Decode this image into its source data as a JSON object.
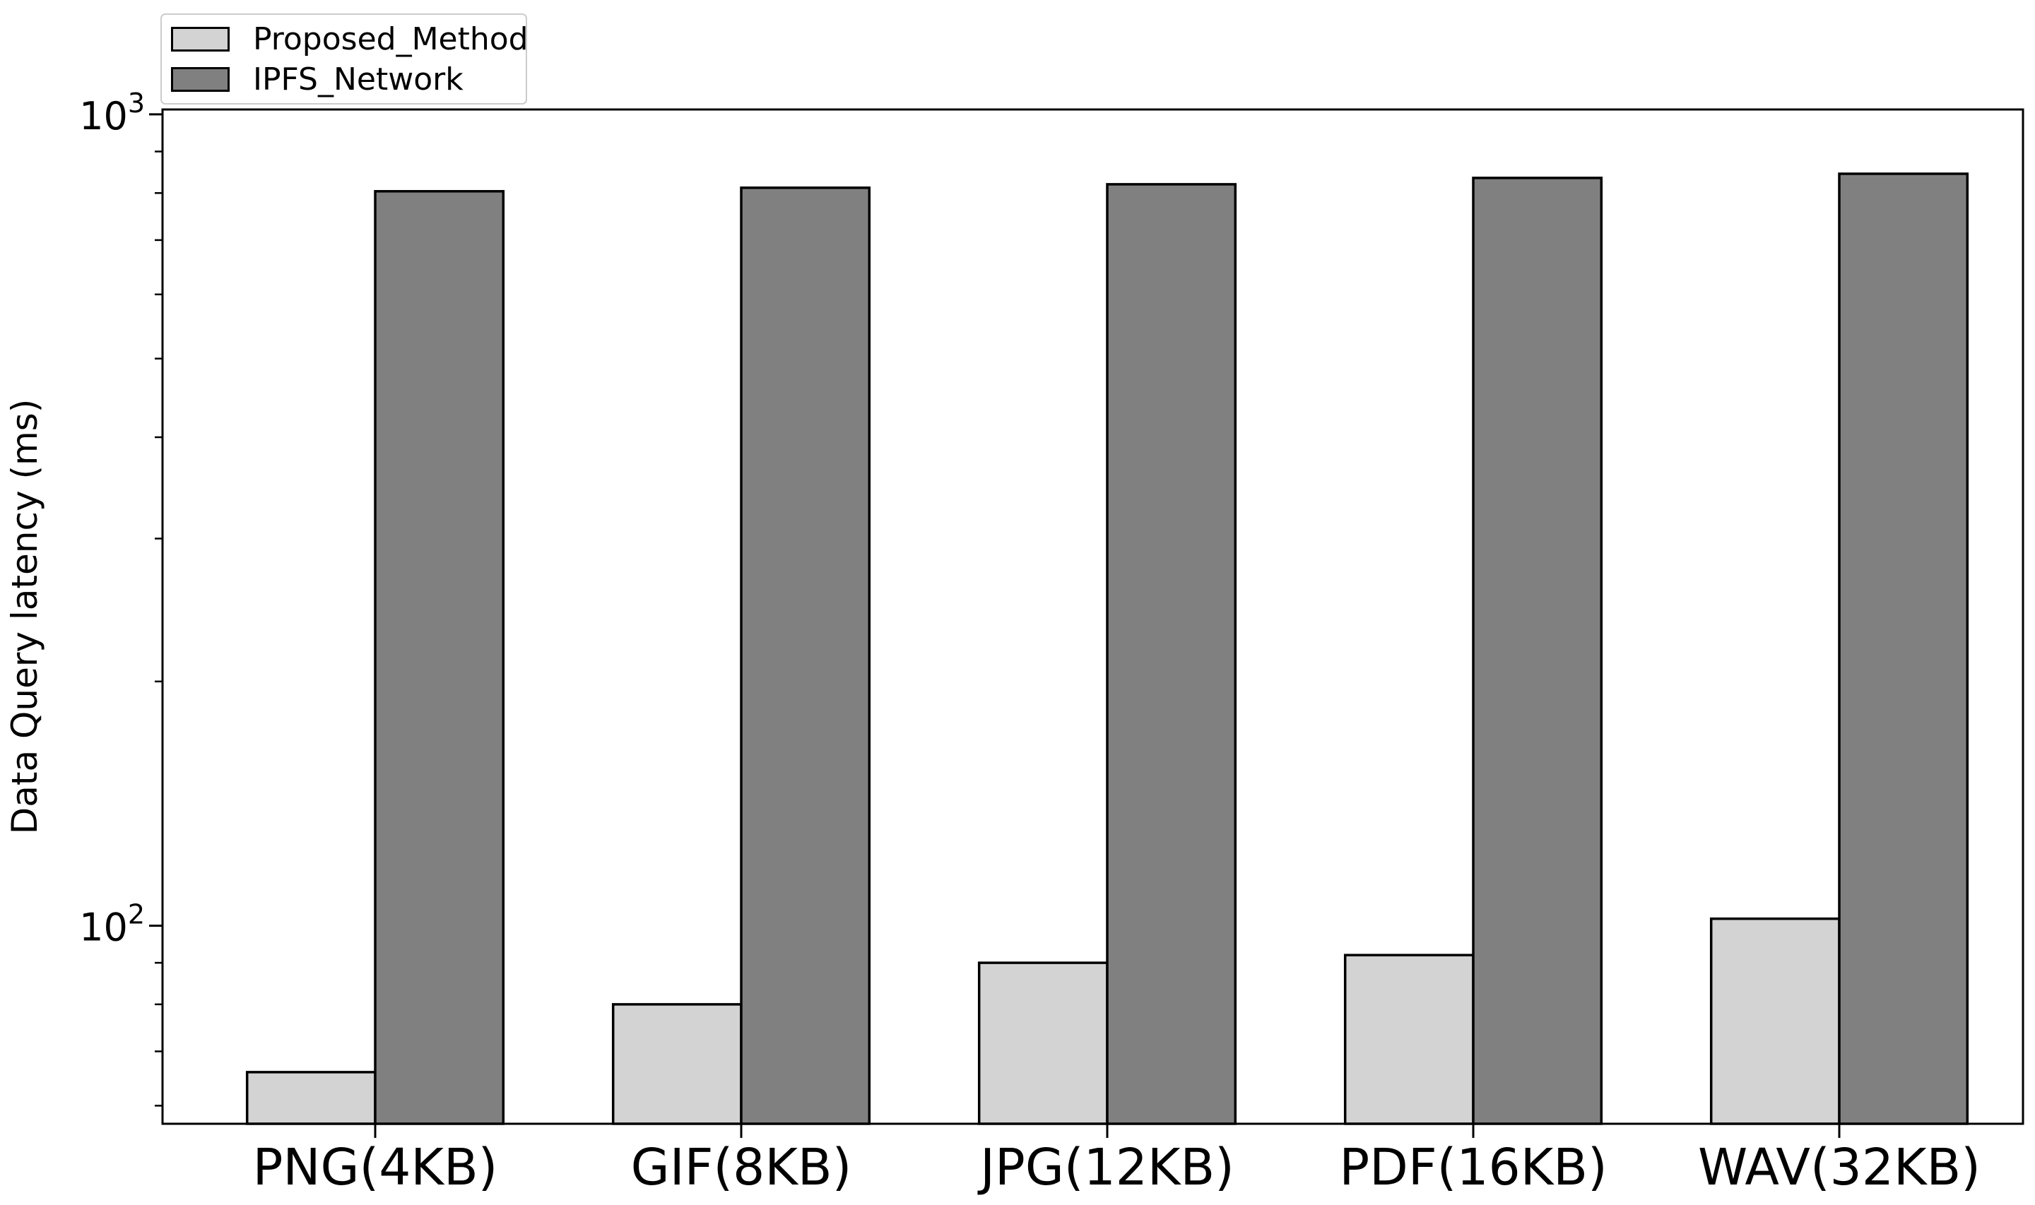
{
  "chart_data": {
    "type": "bar",
    "title": "",
    "xlabel": "",
    "ylabel": "Data Query latency (ms)",
    "yscale": "log",
    "ylim": [
      57,
      1014
    ],
    "grid": false,
    "background": "#ffffff",
    "categories": [
      "PNG(4KB)",
      "GIF(8KB)",
      "JPG(12KB)",
      "PDF(16KB)",
      "WAV(32KB)"
    ],
    "series": [
      {
        "name": "Proposed_Method",
        "color": "#d3d3d3",
        "edge_color": "#000000",
        "values": [
          66,
          80,
          90,
          92,
          102
        ]
      },
      {
        "name": "IPFS_Network",
        "color": "#808080",
        "edge_color": "#000000",
        "values": [
          804,
          812,
          820,
          835,
          845
        ]
      }
    ],
    "bar_width": 0.35,
    "legend_position": "upper left",
    "yticks_major": [
      {
        "value": 100,
        "base": "10",
        "exponent": "2"
      },
      {
        "value": 1000,
        "base": "10",
        "exponent": "3"
      }
    ],
    "ytick_minor_subs": [
      2,
      3,
      4,
      5,
      6,
      7,
      8,
      9
    ],
    "spine_color": "#000000"
  },
  "legend": {
    "items": [
      {
        "label": "Proposed_Method",
        "swatch_color": "#d3d3d3"
      },
      {
        "label": "IPFS_Network",
        "swatch_color": "#808080"
      }
    ]
  }
}
